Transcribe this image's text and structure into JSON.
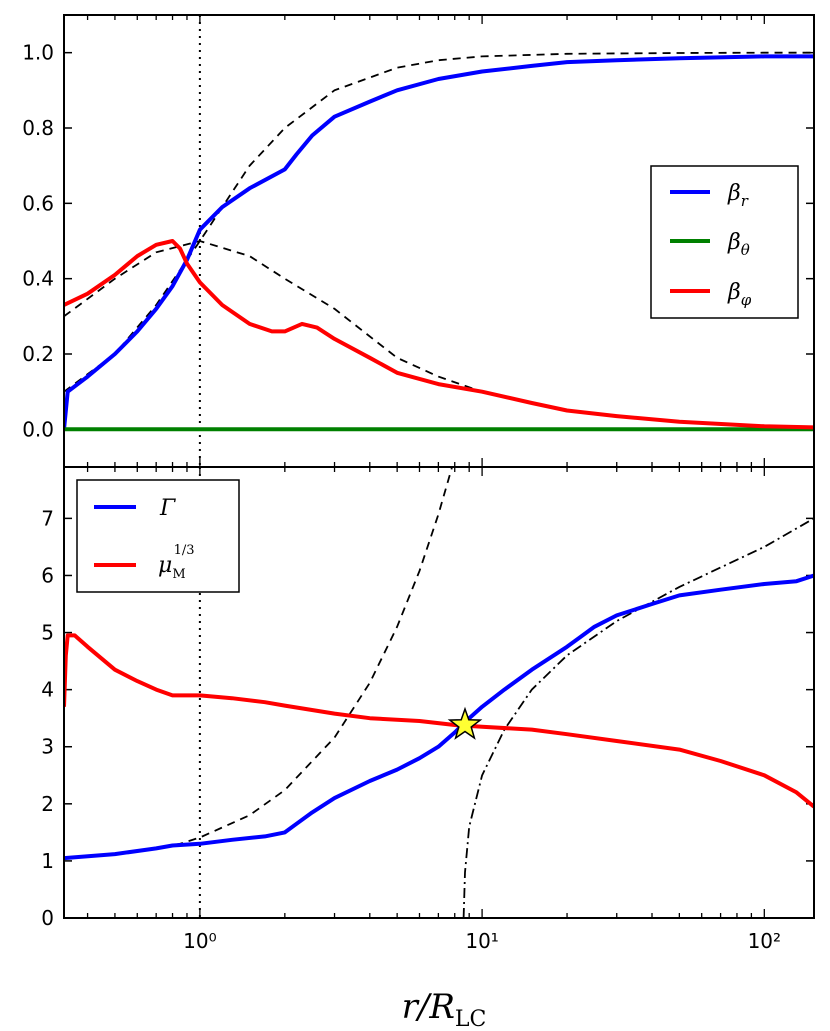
{
  "chart_data": [
    {
      "type": "line",
      "panel": "top",
      "xscale": "log",
      "xlim": [
        0.33,
        150
      ],
      "ylim": [
        -0.1,
        1.1
      ],
      "yticks": [
        "0.0",
        "0.2",
        "0.4",
        "0.6",
        "0.8",
        "1.0"
      ],
      "ytick_values": [
        0.0,
        0.2,
        0.4,
        0.6,
        0.8,
        1.0
      ],
      "xlabel": "",
      "ylabel": "",
      "vline_x": 1.0,
      "legend_position": "right",
      "series": [
        {
          "name": "β_r",
          "color": "#0000ff",
          "x": [
            0.33,
            0.34,
            0.4,
            0.5,
            0.6,
            0.7,
            0.8,
            0.9,
            1.0,
            1.2,
            1.5,
            2.0,
            2.2,
            2.5,
            3.0,
            4.0,
            5.0,
            7.0,
            10.0,
            15.0,
            20.0,
            30.0,
            50.0,
            100.0,
            150.0
          ],
          "y": [
            0.0,
            0.1,
            0.14,
            0.2,
            0.26,
            0.32,
            0.38,
            0.45,
            0.53,
            0.59,
            0.64,
            0.69,
            0.73,
            0.78,
            0.83,
            0.87,
            0.9,
            0.93,
            0.95,
            0.965,
            0.975,
            0.98,
            0.985,
            0.99,
            0.99
          ]
        },
        {
          "name": "β_θ",
          "color": "#008000",
          "x": [
            0.33,
            150.0
          ],
          "y": [
            0.0,
            0.0
          ]
        },
        {
          "name": "β_φ",
          "color": "#ff0000",
          "x": [
            0.33,
            0.4,
            0.5,
            0.6,
            0.7,
            0.8,
            0.85,
            0.9,
            1.0,
            1.2,
            1.5,
            1.8,
            2.0,
            2.3,
            2.6,
            3.0,
            4.0,
            5.0,
            7.0,
            10.0,
            15.0,
            20.0,
            30.0,
            50.0,
            100.0,
            150.0
          ],
          "y": [
            0.33,
            0.36,
            0.41,
            0.46,
            0.49,
            0.5,
            0.48,
            0.44,
            0.39,
            0.33,
            0.28,
            0.26,
            0.26,
            0.28,
            0.27,
            0.24,
            0.19,
            0.15,
            0.12,
            0.1,
            0.07,
            0.05,
            0.035,
            0.02,
            0.008,
            0.005
          ]
        }
      ],
      "reference_curves": [
        {
          "style": "dashed",
          "x": [
            0.33,
            0.5,
            0.7,
            1.0,
            1.5,
            2.0,
            3.0,
            5.0,
            7.0,
            10.0,
            20.0,
            50.0,
            100.0,
            150.0
          ],
          "y": [
            0.1,
            0.2,
            0.33,
            0.5,
            0.7,
            0.8,
            0.9,
            0.96,
            0.98,
            0.99,
            0.997,
            0.999,
            1.0,
            1.0
          ]
        },
        {
          "style": "dashed",
          "x": [
            0.33,
            0.5,
            0.7,
            1.0,
            1.5,
            2.0,
            3.0,
            5.0,
            7.0,
            10.0,
            20.0,
            50.0,
            100.0,
            150.0
          ],
          "y": [
            0.3,
            0.4,
            0.47,
            0.5,
            0.46,
            0.4,
            0.32,
            0.19,
            0.14,
            0.1,
            0.05,
            0.02,
            0.01,
            0.007
          ]
        },
        {
          "style": "dashed",
          "x": [
            0.33,
            150.0
          ],
          "y": [
            0.0,
            0.0
          ]
        }
      ],
      "legend": [
        "β_r",
        "β_θ",
        "β_φ"
      ]
    },
    {
      "type": "line",
      "panel": "bottom",
      "xscale": "log",
      "xlim": [
        0.33,
        150
      ],
      "ylim": [
        0,
        7.9
      ],
      "yticks": [
        "0",
        "1",
        "2",
        "3",
        "4",
        "5",
        "6",
        "7"
      ],
      "ytick_values": [
        0,
        1,
        2,
        3,
        4,
        5,
        6,
        7
      ],
      "xticks": [
        "10⁰",
        "10¹",
        "10²"
      ],
      "xtick_values": [
        1,
        10,
        100
      ],
      "xlabel": "r/R_LC",
      "ylabel": "",
      "vline_x": 1.0,
      "legend_position": "top-left",
      "series": [
        {
          "name": "Γ",
          "color": "#0000ff",
          "x": [
            0.33,
            0.5,
            0.7,
            0.8,
            1.0,
            1.3,
            1.7,
            2.0,
            2.2,
            2.5,
            3.0,
            4.0,
            5.0,
            6.0,
            7.0,
            8.0,
            9.0,
            10.0,
            12.0,
            15.0,
            20.0,
            25.0,
            30.0,
            40.0,
            50.0,
            70.0,
            100.0,
            130.0,
            150.0
          ],
          "y": [
            1.05,
            1.12,
            1.22,
            1.27,
            1.3,
            1.37,
            1.43,
            1.5,
            1.65,
            1.85,
            2.1,
            2.4,
            2.6,
            2.8,
            3.0,
            3.25,
            3.5,
            3.7,
            4.0,
            4.35,
            4.75,
            5.1,
            5.3,
            5.5,
            5.65,
            5.75,
            5.85,
            5.9,
            6.0
          ]
        },
        {
          "name": "μ_M^{1/3}",
          "color": "#ff0000",
          "x": [
            0.33,
            0.335,
            0.34,
            0.36,
            0.4,
            0.5,
            0.6,
            0.7,
            0.8,
            1.0,
            1.3,
            1.7,
            2.0,
            3.0,
            4.0,
            6.0,
            8.0,
            10.0,
            15.0,
            20.0,
            30.0,
            50.0,
            70.0,
            100.0,
            130.0,
            150.0
          ],
          "y": [
            3.7,
            4.6,
            4.95,
            4.95,
            4.75,
            4.35,
            4.15,
            4.0,
            3.9,
            3.9,
            3.85,
            3.78,
            3.72,
            3.58,
            3.5,
            3.45,
            3.38,
            3.35,
            3.3,
            3.22,
            3.1,
            2.95,
            2.75,
            2.5,
            2.2,
            1.95
          ]
        }
      ],
      "reference_curves": [
        {
          "style": "dashed",
          "x": [
            0.33,
            0.5,
            0.7,
            0.85,
            1.0,
            1.5,
            2.0,
            3.0,
            4.0,
            5.0,
            6.0,
            7.0,
            8.0,
            8.4
          ],
          "y": [
            1.05,
            1.12,
            1.22,
            1.3,
            1.41,
            1.8,
            2.24,
            3.16,
            4.12,
            5.1,
            6.08,
            7.07,
            8.06,
            8.5
          ]
        },
        {
          "style": "dashdot",
          "x": [
            8.6,
            8.7,
            9.0,
            10.0,
            12.0,
            15.0,
            20.0,
            30.0,
            50.0,
            100.0,
            150.0
          ],
          "y": [
            0.0,
            0.8,
            1.6,
            2.5,
            3.3,
            4.0,
            4.6,
            5.2,
            5.8,
            6.5,
            7.0
          ]
        }
      ],
      "marker": {
        "shape": "star",
        "color": "#ffff33",
        "x": 8.7,
        "y": 3.38
      },
      "legend": [
        "Γ",
        "μ_M^{1/3}"
      ]
    }
  ]
}
